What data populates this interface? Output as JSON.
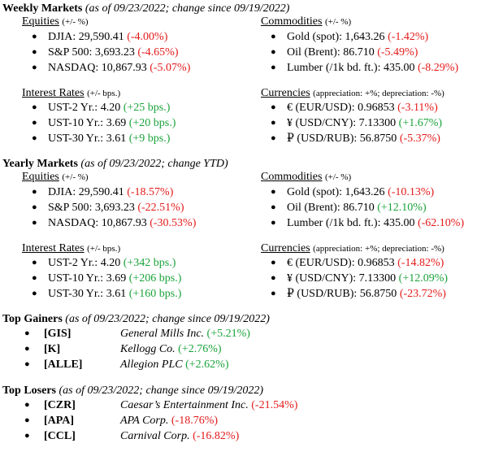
{
  "weekly": {
    "title": "Weekly Markets",
    "subtitle": "(as of 09/23/2022; change since 09/19/2022)",
    "equities": {
      "header": "Equities",
      "header_note": "(+/- %)",
      "items": [
        {
          "label": "DJIA: 29,590.41 ",
          "change": "(-4.00%)",
          "dir": "neg"
        },
        {
          "label": "S&P 500: 3,693.23 ",
          "change": "(-4.65%)",
          "dir": "neg"
        },
        {
          "label": "NASDAQ: 10,867.93 ",
          "change": "(-5.07%)",
          "dir": "neg"
        }
      ]
    },
    "commodities": {
      "header": "Commodities",
      "header_note": "(+/- %)",
      "items": [
        {
          "label": "Gold (spot): 1,643.26 ",
          "change": "(-1.42%)",
          "dir": "neg"
        },
        {
          "label": "Oil (Brent): 86.710 ",
          "change": "(-5.49%)",
          "dir": "neg"
        },
        {
          "label": "Lumber (/1k bd. ft.): 435.00 ",
          "change": "(-8.29%)",
          "dir": "neg"
        }
      ]
    },
    "rates": {
      "header": "Interest Rates",
      "header_note": "(+/- bps.)",
      "items": [
        {
          "label": "UST-2 Yr.: 4.20 ",
          "change": "(+25 bps.)",
          "dir": "pos"
        },
        {
          "label": "UST-10 Yr.: 3.69 ",
          "change": "(+20 bps.)",
          "dir": "pos"
        },
        {
          "label": "UST-30 Yr.: 3.61 ",
          "change": "(+9 bps.)",
          "dir": "pos"
        }
      ]
    },
    "currencies": {
      "header": "Currencies",
      "header_note": "(appreciation: +%; depreciation: -%)",
      "items": [
        {
          "label": "€ (EUR/USD): 0.96853 ",
          "change": "(-3.11%)",
          "dir": "neg"
        },
        {
          "label": "¥ (USD/CNY): 7.13300 ",
          "change": "(+1.67%)",
          "dir": "pos"
        },
        {
          "label": "₽ (USD/RUB): 56.8750 ",
          "change": "(-5.37%)",
          "dir": "neg"
        }
      ]
    }
  },
  "yearly": {
    "title": "Yearly Markets",
    "subtitle": "(as of 09/23/2022; change YTD)",
    "equities": {
      "header": "Equities",
      "header_note": "(+/- %)",
      "items": [
        {
          "label": "DJIA: 29,590.41 ",
          "change": "(-18.57%)",
          "dir": "neg"
        },
        {
          "label": "S&P 500: 3,693.23 ",
          "change": "(-22.51%)",
          "dir": "neg"
        },
        {
          "label": "NASDAQ: 10,867.93 ",
          "change": "(-30.53%)",
          "dir": "neg"
        }
      ]
    },
    "commodities": {
      "header": "Commodities",
      "header_note": "(+/- %)",
      "items": [
        {
          "label": "Gold (spot): 1,643.26 ",
          "change": "(-10.13%)",
          "dir": "neg"
        },
        {
          "label": "Oil (Brent): 86.710 ",
          "change": "(+12.10%)",
          "dir": "pos"
        },
        {
          "label": "Lumber (/1k bd. ft.): 435.00 ",
          "change": "(-62.10%)",
          "dir": "neg"
        }
      ]
    },
    "rates": {
      "header": "Interest Rates",
      "header_note": "(+/- bps.)",
      "items": [
        {
          "label": "UST-2 Yr.: 4.20 ",
          "change": "(+342 bps.)",
          "dir": "pos"
        },
        {
          "label": "UST-10 Yr.: 3.69 ",
          "change": "(+206 bps.)",
          "dir": "pos"
        },
        {
          "label": "UST-30 Yr.: 3.61 ",
          "change": "(+160 bps.)",
          "dir": "pos"
        }
      ]
    },
    "currencies": {
      "header": "Currencies",
      "header_note": "(appreciation: +%; depreciation: -%)",
      "items": [
        {
          "label": "€ (EUR/USD): 0.96853 ",
          "change": "(-14.82%)",
          "dir": "neg"
        },
        {
          "label": "¥ (USD/CNY): 7.13300 ",
          "change": "(+12.09%)",
          "dir": "pos"
        },
        {
          "label": "₽ (USD/RUB): 56.8750 ",
          "change": "(-23.72%)",
          "dir": "neg"
        }
      ]
    }
  },
  "gainers": {
    "title": "Top Gainers",
    "subtitle": "(as of 09/23/2022; change since 09/19/2022)",
    "items": [
      {
        "ticker": "[GIS]",
        "name": "General Mills Inc. ",
        "change": "(+5.21%)",
        "dir": "pos"
      },
      {
        "ticker": "[K]",
        "name": "Kellogg Co. ",
        "change": "(+2.76%)",
        "dir": "pos"
      },
      {
        "ticker": "[ALLE]",
        "name": "Allegion PLC ",
        "change": "(+2.62%)",
        "dir": "pos"
      }
    ]
  },
  "losers": {
    "title": "Top Losers",
    "subtitle": "(as of 09/23/2022; change since 09/19/2022)",
    "items": [
      {
        "ticker": "[CZR]",
        "name": "Caesar’s Entertainment Inc. ",
        "change": "(-21.54%)",
        "dir": "neg"
      },
      {
        "ticker": "[APA]",
        "name": "APA Corp. ",
        "change": "(-18.76%)",
        "dir": "neg"
      },
      {
        "ticker": "[CCL]",
        "name": "Carnival Corp. ",
        "change": "(-16.82%)",
        "dir": "neg"
      }
    ]
  },
  "bullet_glyph": "●",
  "colors": {
    "negative": "#e41a1a",
    "positive": "#1aa33a"
  }
}
